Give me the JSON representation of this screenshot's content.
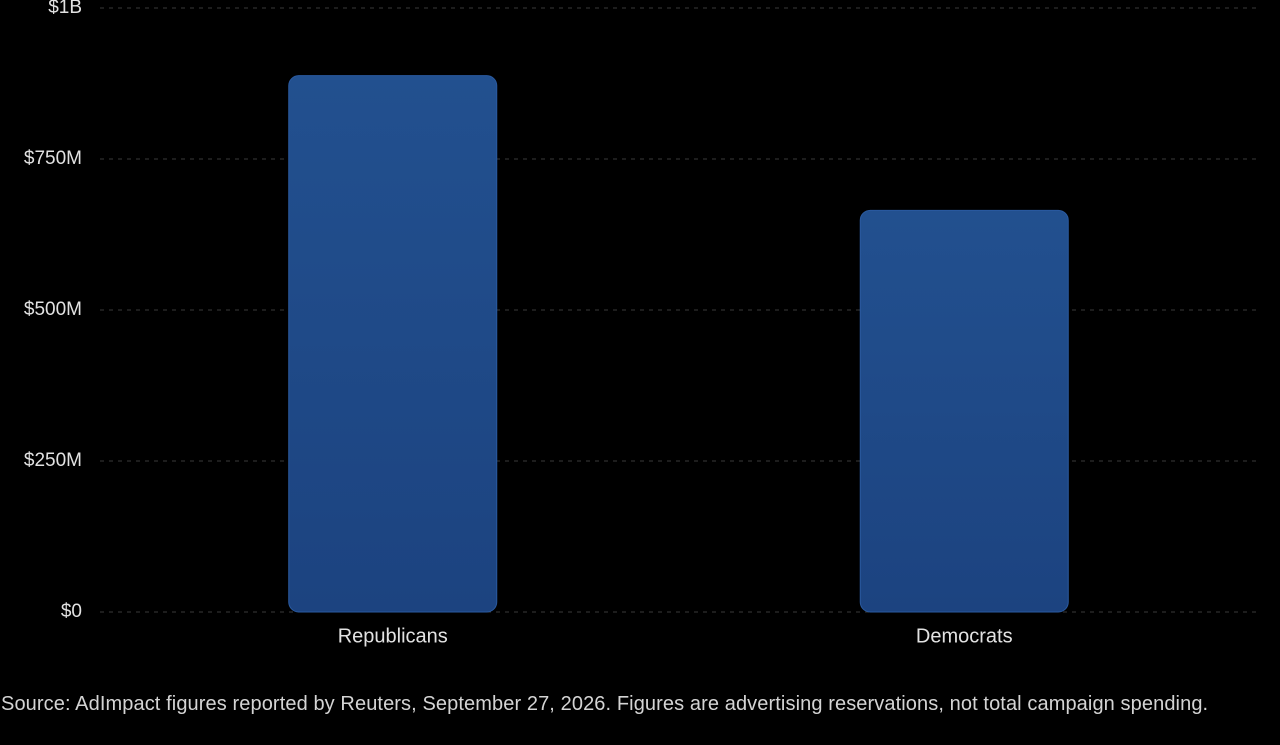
{
  "chart_data": {
    "type": "bar",
    "categories": [
      "Republicans",
      "Democrats"
    ],
    "values": [
      888000000,
      665000000
    ],
    "ylim": [
      0,
      1000000000
    ],
    "yticks": [
      {
        "value": 0,
        "label": "$0"
      },
      {
        "value": 250000000,
        "label": "$250M"
      },
      {
        "value": 500000000,
        "label": "$500M"
      },
      {
        "value": 750000000,
        "label": "$750M"
      },
      {
        "value": 1000000000,
        "label": "$1B"
      }
    ],
    "bar_color": "#1f4a8e",
    "grid": true,
    "title": "",
    "xlabel": "",
    "ylabel": ""
  },
  "source_note": "Source: AdImpact figures reported by Reuters, September 27, 2026. Figures are advertising reservations, not total campaign spending."
}
